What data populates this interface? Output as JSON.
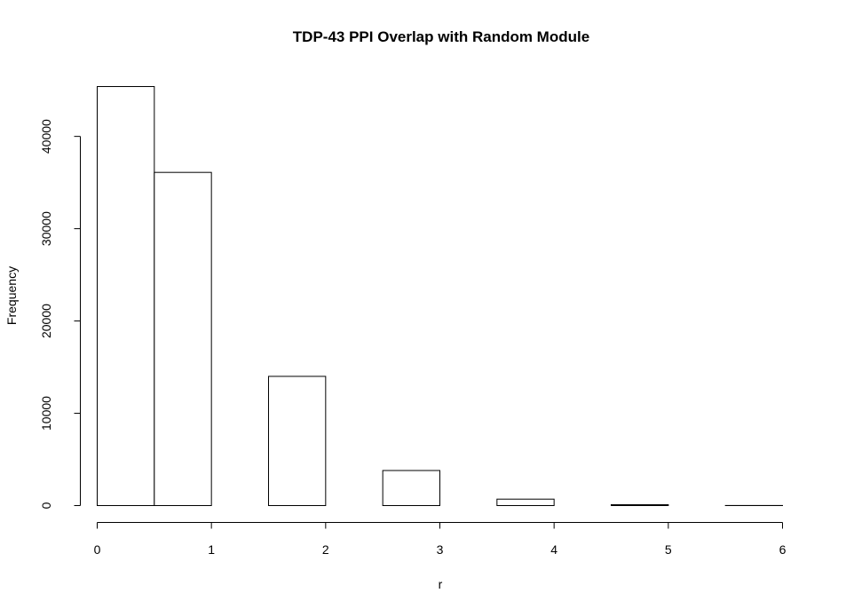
{
  "chart_data": {
    "type": "bar",
    "title": "TDP-43 PPI Overlap with Random Module",
    "xlabel": "r",
    "ylabel": "Frequency",
    "bins": [
      {
        "from": 0.0,
        "to": 0.5,
        "count": 45400
      },
      {
        "from": 0.5,
        "to": 1.0,
        "count": 36100
      },
      {
        "from": 1.0,
        "to": 1.5,
        "count": 0
      },
      {
        "from": 1.5,
        "to": 2.0,
        "count": 14000
      },
      {
        "from": 2.0,
        "to": 2.5,
        "count": 0
      },
      {
        "from": 2.5,
        "to": 3.0,
        "count": 3800
      },
      {
        "from": 3.0,
        "to": 3.5,
        "count": 0
      },
      {
        "from": 3.5,
        "to": 4.0,
        "count": 700
      },
      {
        "from": 4.0,
        "to": 4.5,
        "count": 0
      },
      {
        "from": 4.5,
        "to": 5.0,
        "count": 100
      },
      {
        "from": 5.0,
        "to": 5.5,
        "count": 0
      },
      {
        "from": 5.5,
        "to": 6.0,
        "count": 10
      }
    ],
    "xlim": [
      0,
      6
    ],
    "ylim": [
      0,
      45400
    ],
    "x_ticks": [
      0,
      1,
      2,
      3,
      4,
      5,
      6
    ],
    "x_tick_labels": [
      "0",
      "1",
      "2",
      "3",
      "4",
      "5",
      "6"
    ],
    "y_ticks": [
      0,
      10000,
      20000,
      30000,
      40000
    ],
    "y_tick_labels": [
      "0",
      "10000",
      "20000",
      "30000",
      "40000"
    ],
    "grid": false
  }
}
